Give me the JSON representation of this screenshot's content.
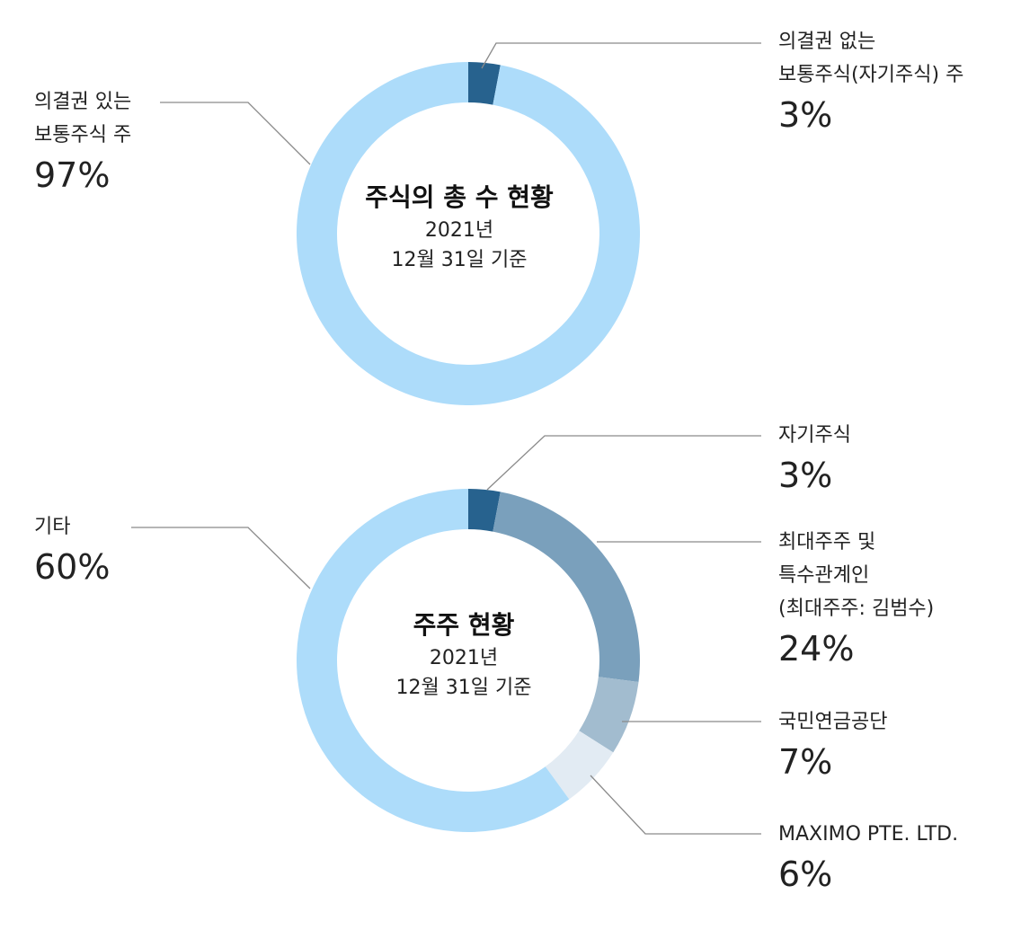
{
  "chart_data": [
    {
      "type": "pie",
      "title": "주식의 총 수 현황",
      "subtitle": [
        "2021년",
        "12월 31일 기준"
      ],
      "slices": [
        {
          "label_lines": [
            "의결권 없는",
            "보통주식(자기주식) 주"
          ],
          "percent_label": "3%",
          "value": 3,
          "color": "#27628e"
        },
        {
          "label_lines": [
            "의결권 있는",
            "보통주식 주"
          ],
          "percent_label": "97%",
          "value": 97,
          "color": "#addcfa"
        }
      ]
    },
    {
      "type": "pie",
      "title": "주주 현황",
      "subtitle": [
        "2021년",
        "12월 31일 기준"
      ],
      "slices": [
        {
          "label_lines": [
            "자기주식"
          ],
          "percent_label": "3%",
          "value": 3,
          "color": "#27628e"
        },
        {
          "label_lines": [
            "최대주주 및",
            "특수관계인",
            "(최대주주: 김범수)"
          ],
          "percent_label": "24%",
          "value": 24,
          "color": "#7aa0bc"
        },
        {
          "label_lines": [
            "국민연금공단"
          ],
          "percent_label": "7%",
          "value": 7,
          "color": "#a2bccf"
        },
        {
          "label_lines": [
            "MAXIMO PTE. LTD."
          ],
          "percent_label": "6%",
          "value": 6,
          "color": "#e2ebf3"
        },
        {
          "label_lines": [
            "기타"
          ],
          "percent_label": "60%",
          "value": 60,
          "color": "#addcfa"
        }
      ]
    }
  ]
}
